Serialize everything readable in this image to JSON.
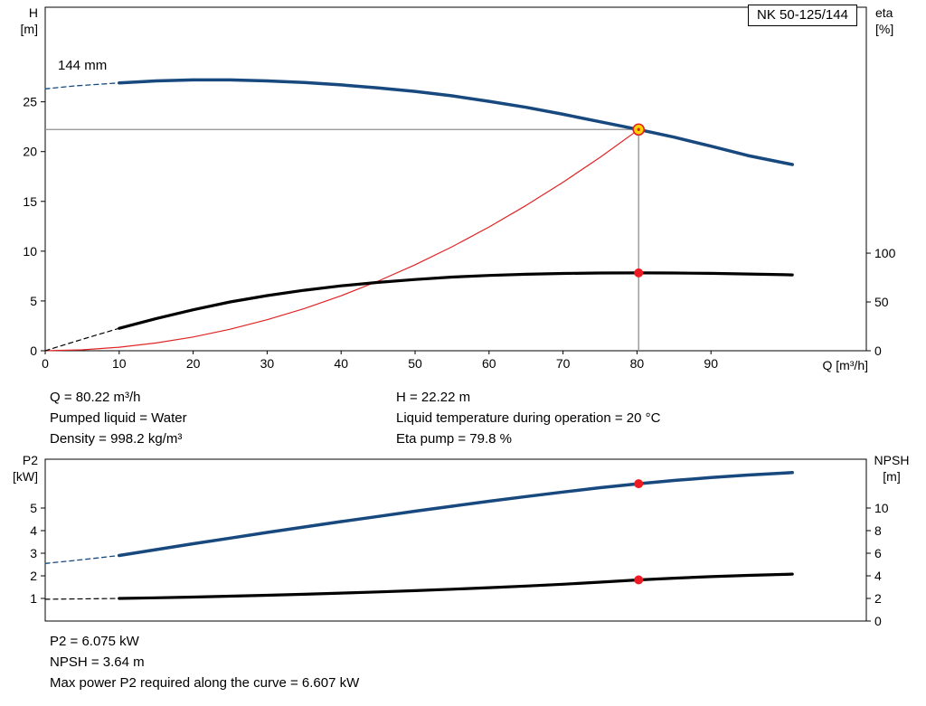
{
  "info": {
    "top_left": [
      "Q = 80.22 m³/h",
      "Pumped liquid = Water",
      "Density = 998.2 kg/m³"
    ],
    "top_right": [
      "H = 22.22 m",
      "Liquid temperature during operation = 20 °C",
      "Eta pump = 79.8 %"
    ],
    "bottom": [
      "P2 = 6.075 kW",
      "NPSH = 3.64 m",
      "Max power P2 required along the curve = 6.607 kW"
    ]
  },
  "chart_data": [
    {
      "name": "head-efficiency-chart",
      "type": "line",
      "title": "NK 50-125/144",
      "annotation": "144 mm",
      "x": {
        "label": "Q [m³/h]",
        "min": 0,
        "max": 111,
        "ticks": [
          0,
          10,
          20,
          30,
          40,
          50,
          60,
          70,
          80,
          90
        ]
      },
      "y_left": {
        "name": "H",
        "unit": "[m]",
        "min": 0,
        "max": 34.5,
        "ticks": [
          0,
          5,
          10,
          15,
          20,
          25
        ]
      },
      "y_right": {
        "name": "eta",
        "unit": "[%]",
        "min": 0,
        "max": 352,
        "ticks": [
          0,
          50,
          100
        ]
      },
      "grid": false,
      "series": [
        {
          "name": "system-curve",
          "axis": "left",
          "color": "#e02424",
          "width": 1.2,
          "points": [
            [
              0,
              0
            ],
            [
              5,
              0.09
            ],
            [
              10,
              0.35
            ],
            [
              15,
              0.78
            ],
            [
              20,
              1.38
            ],
            [
              25,
              2.16
            ],
            [
              30,
              3.11
            ],
            [
              35,
              4.23
            ],
            [
              40,
              5.52
            ],
            [
              45,
              6.99
            ],
            [
              50,
              8.63
            ],
            [
              55,
              10.44
            ],
            [
              60,
              12.43
            ],
            [
              65,
              14.59
            ],
            [
              70,
              16.92
            ],
            [
              75,
              19.42
            ],
            [
              80.22,
              22.22
            ]
          ]
        },
        {
          "name": "efficiency-curve-extrapolation",
          "axis": "right",
          "color": "#000000",
          "width": 1.2,
          "dash": "5 4",
          "points": [
            [
              0,
              0
            ],
            [
              3,
              7
            ],
            [
              6,
              14
            ],
            [
              10,
              23
            ]
          ]
        },
        {
          "name": "efficiency-curve",
          "axis": "right",
          "color": "#000000",
          "width": 3.2,
          "points": [
            [
              10,
              23
            ],
            [
              15,
              33
            ],
            [
              20,
              42
            ],
            [
              25,
              50
            ],
            [
              30,
              56.5
            ],
            [
              35,
              62
            ],
            [
              40,
              66.5
            ],
            [
              45,
              70
            ],
            [
              50,
              73
            ],
            [
              55,
              75.5
            ],
            [
              60,
              77.2
            ],
            [
              65,
              78.4
            ],
            [
              70,
              79.2
            ],
            [
              75,
              79.7
            ],
            [
              80.22,
              79.8
            ],
            [
              85,
              79.7
            ],
            [
              90,
              79.3
            ],
            [
              95,
              78.6
            ],
            [
              100,
              77.9
            ],
            [
              101,
              77.7
            ]
          ]
        },
        {
          "name": "head-curve-extrapolation",
          "axis": "left",
          "color": "#17497e",
          "width": 1.3,
          "dash": "5 4",
          "points": [
            [
              0,
              26.3
            ],
            [
              4,
              26.6
            ],
            [
              7,
              26.75
            ],
            [
              10,
              26.9
            ]
          ]
        },
        {
          "name": "head-curve",
          "axis": "left",
          "color": "#17497e",
          "width": 3.5,
          "points": [
            [
              10,
              26.9
            ],
            [
              15,
              27.1
            ],
            [
              20,
              27.2
            ],
            [
              25,
              27.2
            ],
            [
              30,
              27.1
            ],
            [
              35,
              26.95
            ],
            [
              40,
              26.7
            ],
            [
              45,
              26.4
            ],
            [
              50,
              26.05
            ],
            [
              55,
              25.6
            ],
            [
              60,
              25.05
            ],
            [
              65,
              24.45
            ],
            [
              70,
              23.75
            ],
            [
              75,
              23.0
            ],
            [
              80.22,
              22.22
            ],
            [
              85,
              21.45
            ],
            [
              90,
              20.55
            ],
            [
              95,
              19.6
            ],
            [
              100,
              18.85
            ],
            [
              101,
              18.7
            ]
          ]
        }
      ],
      "crosshair": {
        "q": 80.22,
        "h": 22.22
      },
      "markers": [
        {
          "name": "duty-point",
          "axis": "left",
          "q": 80.22,
          "v": 22.22,
          "style": "duty"
        },
        {
          "name": "efficiency-point",
          "axis": "right",
          "q": 80.22,
          "v": 79.8,
          "style": "dot"
        }
      ],
      "duty": {
        "q": 80.22,
        "h": 22.22,
        "eta": 79.8
      }
    },
    {
      "name": "power-npsh-chart",
      "type": "line",
      "title": "",
      "x": {
        "label": "",
        "min": 0,
        "max": 111,
        "ticks": []
      },
      "y_left": {
        "name": "P2",
        "unit": "[kW]",
        "min": 0,
        "max": 7.16,
        "ticks": [
          1,
          2,
          3,
          4,
          5
        ]
      },
      "y_right": {
        "name": "NPSH",
        "unit": "[m]",
        "min": 0,
        "max": 14.32,
        "ticks": [
          0,
          2,
          4,
          6,
          8,
          10
        ]
      },
      "grid": false,
      "series": [
        {
          "name": "p2-curve-extrapolation",
          "axis": "left",
          "color": "#17497e",
          "width": 1.3,
          "dash": "5 4",
          "points": [
            [
              0,
              2.55
            ],
            [
              4,
              2.68
            ],
            [
              7,
              2.79
            ],
            [
              10,
              2.9
            ]
          ]
        },
        {
          "name": "p2-curve",
          "axis": "left",
          "color": "#17497e",
          "width": 3.5,
          "points": [
            [
              10,
              2.9
            ],
            [
              15,
              3.16
            ],
            [
              20,
              3.42
            ],
            [
              25,
              3.67
            ],
            [
              30,
              3.92
            ],
            [
              35,
              4.16
            ],
            [
              40,
              4.4
            ],
            [
              45,
              4.63
            ],
            [
              50,
              4.86
            ],
            [
              55,
              5.08
            ],
            [
              60,
              5.3
            ],
            [
              65,
              5.51
            ],
            [
              70,
              5.71
            ],
            [
              75,
              5.9
            ],
            [
              80.22,
              6.075
            ],
            [
              85,
              6.22
            ],
            [
              90,
              6.35
            ],
            [
              95,
              6.46
            ],
            [
              100,
              6.55
            ],
            [
              101,
              6.57
            ]
          ]
        },
        {
          "name": "npsh-curve-extrapolation",
          "axis": "right",
          "color": "#000000",
          "width": 1.2,
          "dash": "5 4",
          "points": [
            [
              0,
              1.93
            ],
            [
              5,
              1.96
            ],
            [
              10,
              2.0
            ]
          ]
        },
        {
          "name": "npsh-curve",
          "axis": "right",
          "color": "#000000",
          "width": 3.2,
          "points": [
            [
              10,
              2.0
            ],
            [
              15,
              2.06
            ],
            [
              20,
              2.12
            ],
            [
              25,
              2.2
            ],
            [
              30,
              2.28
            ],
            [
              35,
              2.37
            ],
            [
              40,
              2.47
            ],
            [
              45,
              2.58
            ],
            [
              50,
              2.69
            ],
            [
              55,
              2.82
            ],
            [
              60,
              2.95
            ],
            [
              65,
              3.1
            ],
            [
              70,
              3.26
            ],
            [
              75,
              3.44
            ],
            [
              80.22,
              3.64
            ],
            [
              85,
              3.79
            ],
            [
              90,
              3.93
            ],
            [
              95,
              4.04
            ],
            [
              100,
              4.13
            ],
            [
              101,
              4.15
            ]
          ]
        }
      ],
      "markers": [
        {
          "name": "p2-point",
          "axis": "left",
          "q": 80.22,
          "v": 6.075,
          "style": "dot"
        },
        {
          "name": "npsh-point",
          "axis": "right",
          "q": 80.22,
          "v": 3.64,
          "style": "dot"
        }
      ],
      "duty": {
        "q": 80.22,
        "p2_kw": 6.075,
        "npsh_m": 3.64,
        "p2_max_kw": 6.607
      }
    }
  ]
}
